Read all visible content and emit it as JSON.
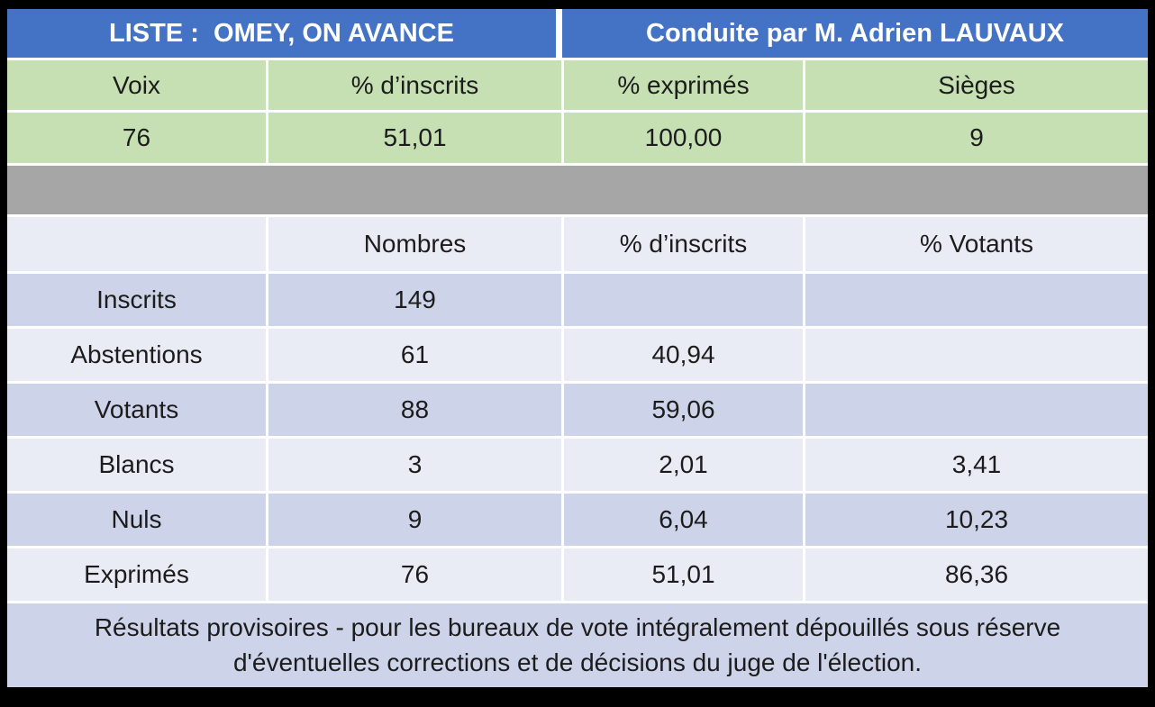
{
  "list_header": {
    "list_label": "LISTE :  OMEY, ON AVANCE",
    "conductor_label": "Conduite par M. Adrien LAUVAUX"
  },
  "summary_table": {
    "headers": [
      "Voix",
      "% d’inscrits",
      "% exprimés",
      "Sièges"
    ],
    "values": [
      "76",
      "51,01",
      "100,00",
      "9"
    ]
  },
  "details_table": {
    "headers": [
      "",
      "Nombres",
      "% d’inscrits",
      "% Votants"
    ],
    "rows": [
      {
        "label": "Inscrits",
        "nombres": "149",
        "pct_inscrits": "",
        "pct_votants": ""
      },
      {
        "label": "Abstentions",
        "nombres": "61",
        "pct_inscrits": "40,94",
        "pct_votants": ""
      },
      {
        "label": "Votants",
        "nombres": "88",
        "pct_inscrits": "59,06",
        "pct_votants": ""
      },
      {
        "label": "Blancs",
        "nombres": "3",
        "pct_inscrits": "2,01",
        "pct_votants": "3,41"
      },
      {
        "label": "Nuls",
        "nombres": "9",
        "pct_inscrits": "6,04",
        "pct_votants": "10,23"
      },
      {
        "label": "Exprimés",
        "nombres": "76",
        "pct_inscrits": "51,01",
        "pct_votants": "86,36"
      }
    ]
  },
  "footer": {
    "disclaimer": "Résultats provisoires - pour les bureaux de vote intégralement dépouillés sous réserve d'éventuelles corrections et de décisions du juge de l'élection."
  },
  "colors": {
    "header_blue": "#4472C4",
    "summary_green": "#C6E0B4",
    "separator_gray": "#A6A6A6",
    "band_light": "#E9EBF5",
    "band_dark": "#CDD3E8",
    "header_text": "#FFFFFF",
    "body_text": "#1C1C1C",
    "frame_black": "#000000"
  }
}
